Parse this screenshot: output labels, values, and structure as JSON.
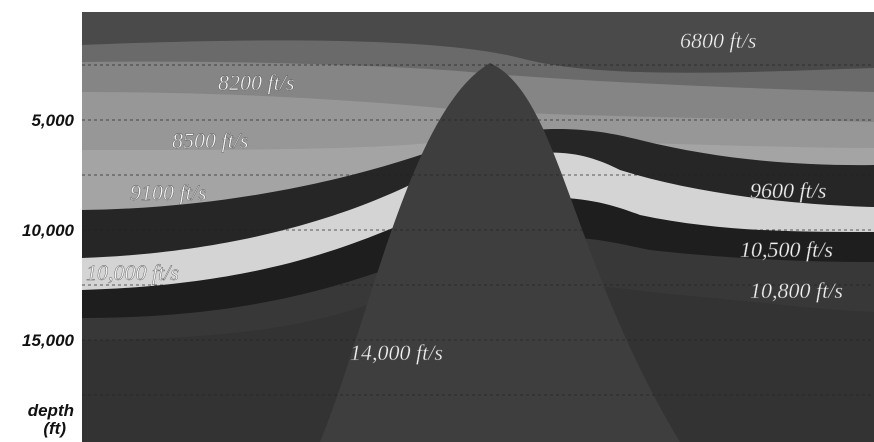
{
  "depth_axis": {
    "ticks": [
      "5,000",
      "10,000",
      "15,000"
    ],
    "label_line1": "depth",
    "label_line2": "(ft)"
  },
  "layers": [
    {
      "label": "6800 ft/s"
    },
    {
      "label": "8200 ft/s"
    },
    {
      "label": "8500 ft/s"
    },
    {
      "label": "9100 ft/s"
    },
    {
      "label": "9600 ft/s"
    },
    {
      "label": "10,000 ft/s"
    },
    {
      "label": "10,500 ft/s"
    },
    {
      "label": "10,800 ft/s"
    },
    {
      "label": "14,000 ft/s"
    }
  ]
}
